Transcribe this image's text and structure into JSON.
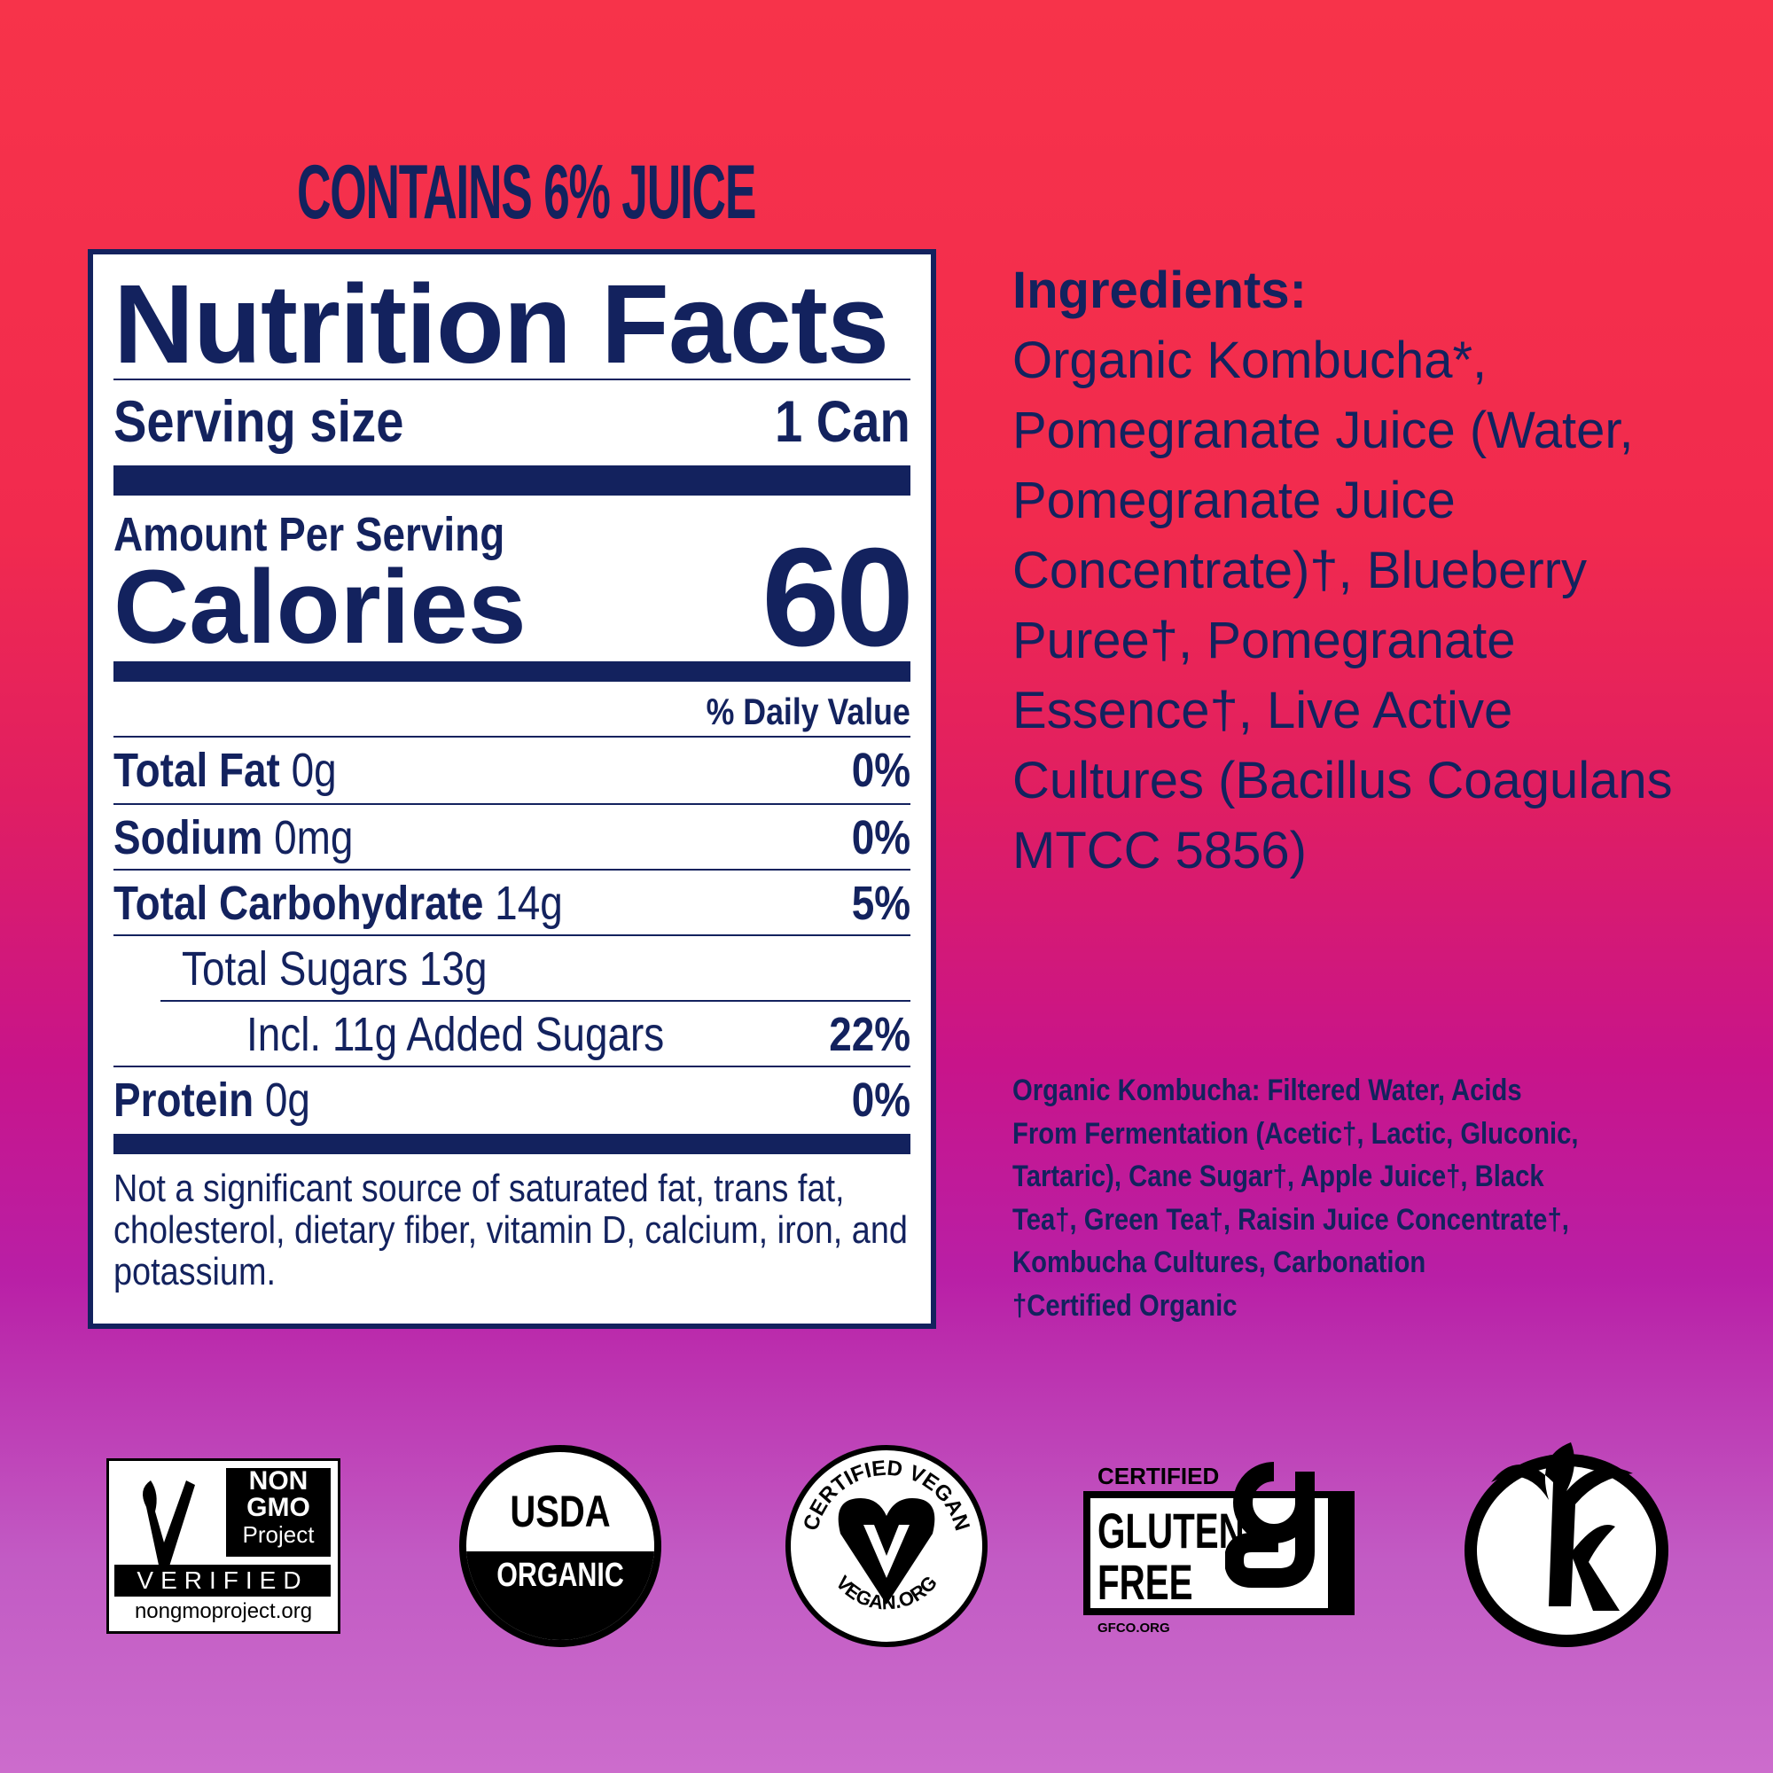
{
  "header": {
    "juice": "CONTAINS 6% JUICE"
  },
  "nutrition": {
    "title": "Nutrition Facts",
    "serving_label": "Serving size",
    "serving_value": "1 Can",
    "amount_label": "Amount Per Serving",
    "calories_label": "Calories",
    "calories_value": "60",
    "dv_header": "% Daily Value",
    "rows": [
      {
        "name": "Total Fat",
        "amount": "0g",
        "dv": "0%"
      },
      {
        "name": "Sodium",
        "amount": "0mg",
        "dv": "0%"
      },
      {
        "name": "Total Carbohydrate",
        "amount": "14g",
        "dv": "5%"
      },
      {
        "name": "",
        "amount": "Total Sugars 13g",
        "dv": ""
      },
      {
        "name": "",
        "amount": "Incl. 11g Added Sugars",
        "dv": "22%"
      },
      {
        "name": "Protein",
        "amount": "0g",
        "dv": "0%"
      }
    ],
    "footnote": "Not a significant source of saturated fat, trans fat, cholesterol, dietary fiber, vitamin D, calcium, iron, and potassium."
  },
  "ingredients": {
    "title": "Ingredients:",
    "lines": [
      "Organic Kombucha*,",
      "Pomegranate Juice (Water,",
      "Pomegranate Juice",
      "Concentrate)†, Blueberry",
      "Puree†, Pomegranate",
      "Essence†, Live Active",
      "Cultures (Bacillus Coagulans",
      "MTCC 5856)"
    ]
  },
  "kombucha_note": {
    "lines": [
      "Organic Kombucha: Filtered Water, Acids",
      "From Fermentation (Acetic†, Lactic, Gluconic,",
      "Tartaric), Cane Sugar†, Apple Juice†, Black",
      "Tea†, Green Tea†, Raisin Juice Concentrate†,",
      "Kombucha Cultures, Carbonation",
      "†Certified Organic"
    ]
  },
  "logos": {
    "nongmo": {
      "l1": "NON",
      "l2": "GMO",
      "l3": "Project",
      "l4": "VERIFIED",
      "l5": "nongmoproject.org"
    },
    "usda": {
      "l1": "USDA",
      "l2": "ORGANIC"
    },
    "vegan": {
      "top": "CERTIFIED VEGAN",
      "bottom": "VEGAN.ORG"
    },
    "gluten": {
      "l1": "CERTIFIED",
      "l2": "GLUTEN",
      "l3": "FREE",
      "l4": "GFCO.ORG"
    },
    "kosher": {
      "icon": "kosher-k-palm-icon"
    }
  },
  "colors": {
    "navy": "#13225e",
    "bg_top": "#f7334a",
    "bg_bottom": "#cc6ccc"
  }
}
